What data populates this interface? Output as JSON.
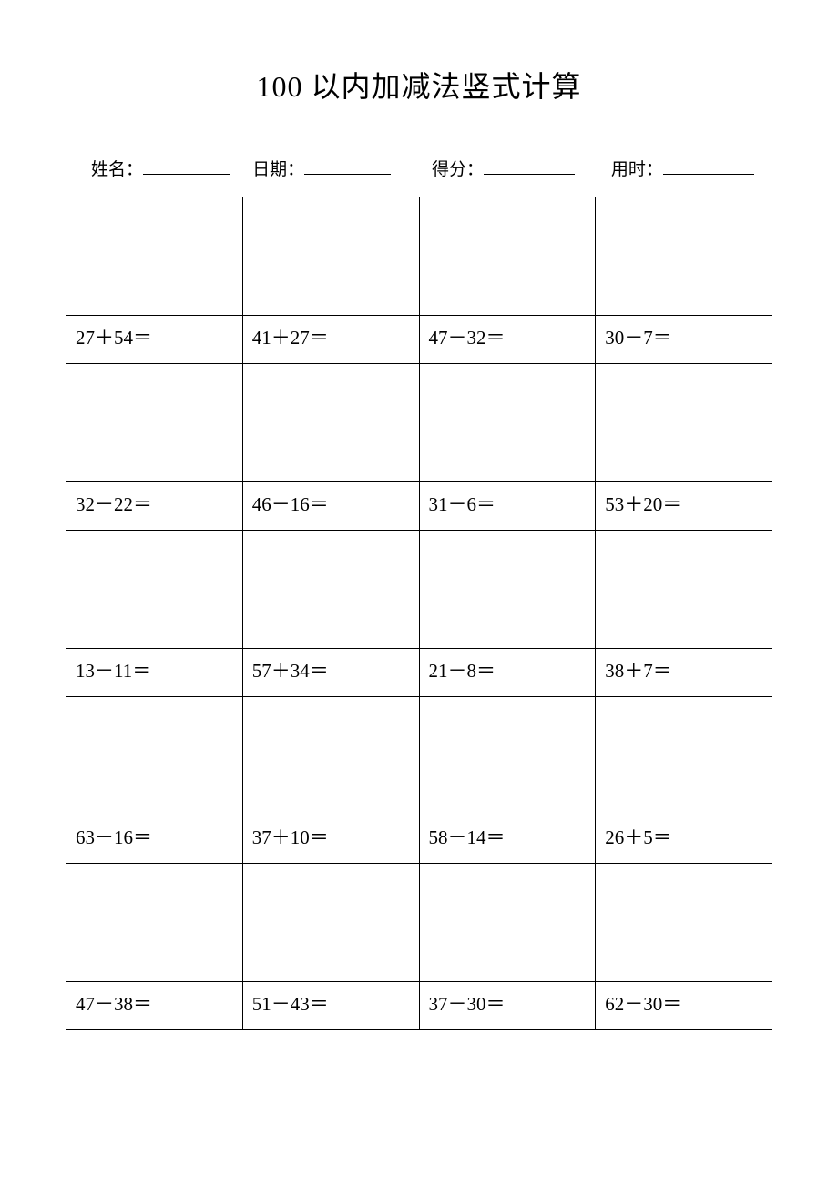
{
  "title": "100 以内加减法竖式计算",
  "header": {
    "name_label": "姓名：",
    "date_label": "日期：",
    "score_label": "得分：",
    "time_label": "用时："
  },
  "table": {
    "columns": 4,
    "border_color": "#000000",
    "background_color": "#ffffff",
    "text_color": "#000000",
    "title_fontsize": 32,
    "header_fontsize": 19,
    "cell_fontsize": 21,
    "work_row_height": 130,
    "problem_row_height": 53,
    "rows": [
      [
        "27＋54＝",
        "41＋27＝",
        "47－32＝",
        "30－7＝"
      ],
      [
        "32－22＝",
        "46－16＝",
        "31－6＝",
        "53＋20＝"
      ],
      [
        "13－11＝",
        "57＋34＝",
        "21－8＝",
        "38＋7＝"
      ],
      [
        "63－16＝",
        "37＋10＝",
        "58－14＝",
        "26＋5＝"
      ],
      [
        "47－38＝",
        "51－43＝",
        "37－30＝",
        "62－30＝"
      ]
    ]
  }
}
